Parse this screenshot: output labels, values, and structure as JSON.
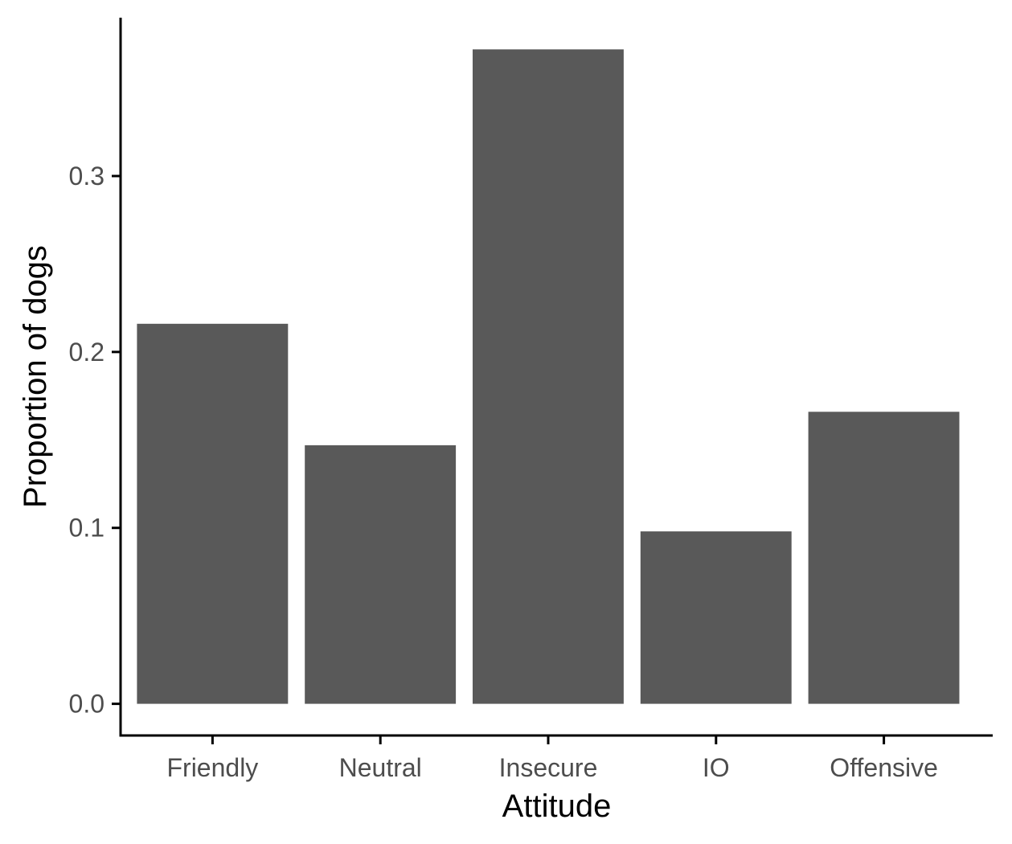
{
  "chart_data": {
    "type": "bar",
    "title": "",
    "xlabel": "Attitude",
    "ylabel": "Proportion of dogs",
    "categories": [
      "Friendly",
      "Neutral",
      "Insecure",
      "IO",
      "Offensive"
    ],
    "values": [
      0.216,
      0.147,
      0.372,
      0.098,
      0.166
    ],
    "ylim": [
      -0.018,
      0.39
    ],
    "yticks": [
      0.0,
      0.1,
      0.2,
      0.3
    ],
    "ytick_labels": [
      "0.0",
      "0.1",
      "0.2",
      "0.3"
    ],
    "grid": false,
    "legend": "none",
    "bar_color": "#595959",
    "axis_color": "#000000",
    "tick_label_color": "#4d4d4d"
  }
}
